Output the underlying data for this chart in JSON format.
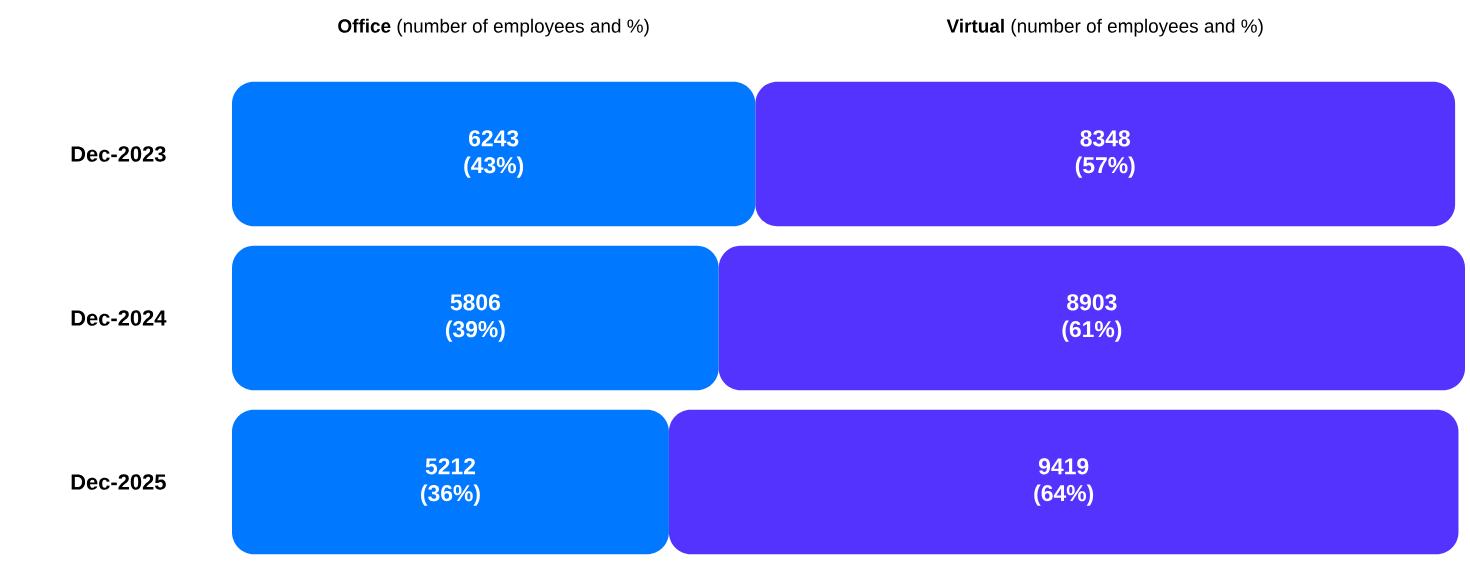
{
  "chart_data": {
    "type": "bar",
    "orientation": "horizontal",
    "stacked": true,
    "legend": "top",
    "categories": [
      "Dec-2023",
      "Dec-2024",
      "Dec-2025"
    ],
    "series": [
      {
        "name": "**Office** (number of employees and %)",
        "color": "#0078ff",
        "values": [
          6243,
          5806,
          5212
        ],
        "value_labels": [
          "6243 (43%)",
          "5806 (39%)",
          "5212 (36%)"
        ]
      },
      {
        "name": "**Virtual** (number of employees and %)",
        "color": "#5533ff",
        "values": [
          8348,
          8903,
          9419
        ],
        "value_labels": [
          "8348 (57%)",
          "8903 (61%)",
          "9419 (64%)"
        ]
      }
    ]
  }
}
